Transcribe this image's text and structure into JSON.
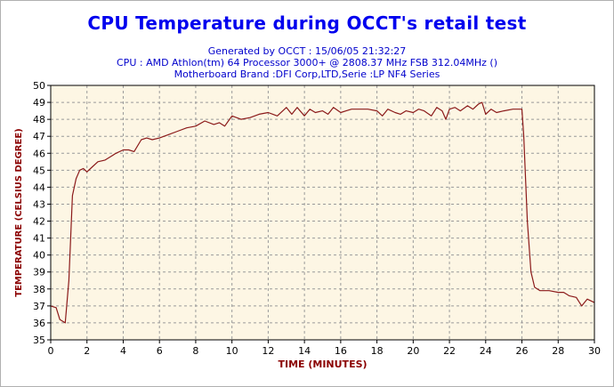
{
  "title": "CPU Temperature during OCCT's retail test",
  "subtitle_lines": [
    "Generated by OCCT : 15/06/05 21:32:27",
    "CPU : AMD Athlon(tm) 64 Processor 3000+ @ 2808.37 MHz FSB 312.04MHz ()",
    "Motherboard Brand :DFI Corp,LTD,Serie :LP NF4 Series"
  ],
  "colors": {
    "title": "#0000ee",
    "subtitle": "#0000cc",
    "axis_label": "#8b0000",
    "line": "#8b1a1a",
    "plot_bg": "#fdf6e4",
    "grid": "#9a9a9a"
  },
  "chart_data": {
    "type": "line",
    "title": "CPU Temperature during OCCT's retail test",
    "xlabel": "TIME (MINUTES)",
    "ylabel": "TEMPERATURE (CELSIUS DEGREE)",
    "xlim": [
      0,
      30
    ],
    "ylim": [
      35,
      50
    ],
    "xticks": [
      0,
      2,
      4,
      6,
      8,
      10,
      12,
      14,
      16,
      18,
      20,
      22,
      24,
      26,
      28,
      30
    ],
    "yticks": [
      35,
      36,
      37,
      38,
      39,
      40,
      41,
      42,
      43,
      44,
      45,
      46,
      47,
      48,
      49,
      50
    ],
    "grid": true,
    "series": [
      {
        "color": "#8b1a1a",
        "x": [
          0,
          0.3,
          0.5,
          0.8,
          1.0,
          1.2,
          1.4,
          1.6,
          1.8,
          2.0,
          2.3,
          2.6,
          3.0,
          3.3,
          3.6,
          4.0,
          4.3,
          4.6,
          5.0,
          5.3,
          5.6,
          6.0,
          6.5,
          7.0,
          7.5,
          8.0,
          8.5,
          9.0,
          9.3,
          9.6,
          10.0,
          10.5,
          11.0,
          11.5,
          12.0,
          12.5,
          13.0,
          13.3,
          13.6,
          14.0,
          14.3,
          14.6,
          15.0,
          15.3,
          15.6,
          16.0,
          16.3,
          16.6,
          17.0,
          17.5,
          18.0,
          18.3,
          18.6,
          19.0,
          19.3,
          19.6,
          20.0,
          20.3,
          20.6,
          21.0,
          21.3,
          21.6,
          21.8,
          22.0,
          22.3,
          22.6,
          23.0,
          23.3,
          23.6,
          23.8,
          24.0,
          24.3,
          24.6,
          25.0,
          25.5,
          26.0,
          26.1,
          26.3,
          26.5,
          26.7,
          27.0,
          27.5,
          28.0,
          28.3,
          28.6,
          29.0,
          29.3,
          29.6,
          30.0
        ],
        "y": [
          37.0,
          36.9,
          36.2,
          36.0,
          38.5,
          43.5,
          44.5,
          45.0,
          45.1,
          44.9,
          45.2,
          45.5,
          45.6,
          45.8,
          46.0,
          46.2,
          46.2,
          46.1,
          46.8,
          46.9,
          46.8,
          46.9,
          47.1,
          47.3,
          47.5,
          47.6,
          47.9,
          47.7,
          47.8,
          47.6,
          48.2,
          48.0,
          48.1,
          48.3,
          48.4,
          48.2,
          48.7,
          48.3,
          48.7,
          48.2,
          48.6,
          48.4,
          48.5,
          48.3,
          48.7,
          48.4,
          48.5,
          48.6,
          48.6,
          48.6,
          48.5,
          48.2,
          48.6,
          48.4,
          48.3,
          48.5,
          48.4,
          48.6,
          48.5,
          48.2,
          48.7,
          48.5,
          48.0,
          48.6,
          48.7,
          48.5,
          48.8,
          48.6,
          48.9,
          49.0,
          48.3,
          48.6,
          48.4,
          48.5,
          48.6,
          48.6,
          47.0,
          42.0,
          39.0,
          38.1,
          37.9,
          37.9,
          37.8,
          37.8,
          37.6,
          37.5,
          37.0,
          37.4,
          37.2
        ]
      }
    ]
  }
}
